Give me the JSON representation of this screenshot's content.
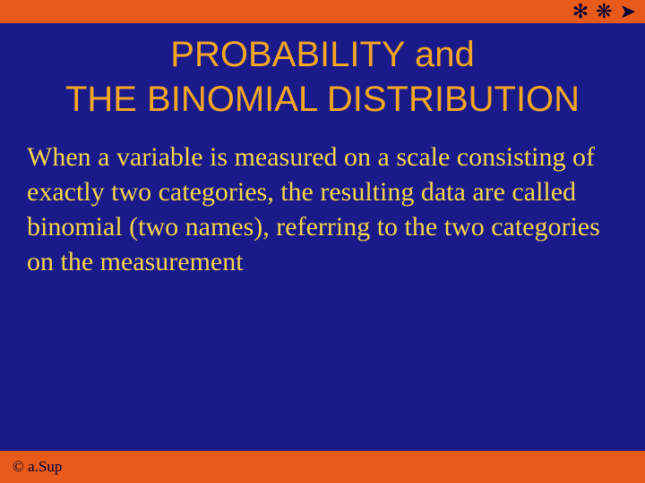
{
  "top_icons": {
    "icon1": "✻",
    "icon2": "❋",
    "icon3": "➤"
  },
  "title_line1": "PROBABILITY and",
  "title_line2": "THE BINOMIAL DISTRIBUTION",
  "body": "When a variable is measured on a scale consisting of exactly two categories, the resulting data are called binomial (two names), referring to the two categories on the measurement",
  "footer": "© a.Sup",
  "colors": {
    "background": "#1a1a8a",
    "accent_bar": "#e85a1a",
    "title_color": "#f5a623",
    "body_color": "#f5d64a",
    "footer_color": "#000033"
  },
  "typography": {
    "title_fontsize": 40,
    "body_fontsize": 30,
    "footer_fontsize": 17
  }
}
